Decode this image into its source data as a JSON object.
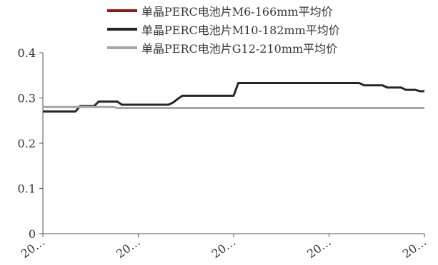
{
  "chart_data": {
    "type": "line",
    "title": "",
    "xlabel": "",
    "ylabel": "",
    "ylim": [
      0,
      0.4
    ],
    "y_ticks": [
      "0",
      "0.1",
      "0.2",
      "0.3",
      "0.4"
    ],
    "x_tick_labels": [
      "20…",
      "20…",
      "20…",
      "20…",
      "20…"
    ],
    "grid": false,
    "legend_position": "top",
    "series": [
      {
        "name": "单晶PERC电池片M6-166mm平均价",
        "color": "#8b1a1a",
        "values": []
      },
      {
        "name": "单晶PERC电池片M10-182mm平均价",
        "color": "#262626",
        "values": [
          0.27,
          0.27,
          0.27,
          0.27,
          0.27,
          0.27,
          0.27,
          0.27,
          0.282,
          0.282,
          0.282,
          0.282,
          0.292,
          0.292,
          0.292,
          0.292,
          0.292,
          0.285,
          0.285,
          0.285,
          0.285,
          0.285,
          0.285,
          0.285,
          0.285,
          0.285,
          0.285,
          0.285,
          0.29,
          0.298,
          0.305,
          0.305,
          0.305,
          0.305,
          0.305,
          0.305,
          0.305,
          0.305,
          0.305,
          0.305,
          0.305,
          0.305,
          0.333,
          0.333,
          0.333,
          0.333,
          0.333,
          0.333,
          0.333,
          0.333,
          0.333,
          0.333,
          0.333,
          0.333,
          0.333,
          0.333,
          0.333,
          0.333,
          0.333,
          0.333,
          0.333,
          0.333,
          0.333,
          0.333,
          0.333,
          0.333,
          0.333,
          0.333,
          0.333,
          0.328,
          0.328,
          0.328,
          0.328,
          0.328,
          0.323,
          0.323,
          0.323,
          0.323,
          0.318,
          0.318,
          0.318,
          0.315,
          0.315
        ]
      },
      {
        "name": "单晶PERC电池片G12-210mm平均价",
        "color": "#a6a6a6",
        "values": [
          0.28,
          0.28,
          0.28,
          0.28,
          0.28,
          0.28,
          0.28,
          0.28,
          0.28,
          0.28,
          0.28,
          0.28,
          0.28,
          0.28,
          0.28,
          0.28,
          0.278,
          0.278,
          0.278,
          0.278,
          0.278,
          0.278,
          0.278,
          0.278,
          0.278,
          0.278,
          0.278,
          0.278,
          0.278,
          0.278,
          0.278,
          0.278,
          0.278,
          0.278,
          0.278,
          0.278,
          0.278,
          0.278,
          0.278,
          0.278,
          0.278,
          0.278,
          0.278,
          0.278,
          0.278,
          0.278,
          0.278,
          0.278,
          0.278,
          0.278,
          0.278,
          0.278,
          0.278,
          0.278,
          0.278,
          0.278,
          0.278,
          0.278,
          0.278,
          0.278,
          0.278,
          0.278,
          0.278,
          0.278,
          0.278,
          0.278,
          0.278,
          0.278,
          0.278,
          0.278,
          0.278,
          0.278,
          0.278,
          0.278,
          0.278,
          0.278,
          0.278,
          0.278,
          0.278,
          0.278,
          0.278,
          0.278,
          0.278
        ]
      }
    ]
  }
}
